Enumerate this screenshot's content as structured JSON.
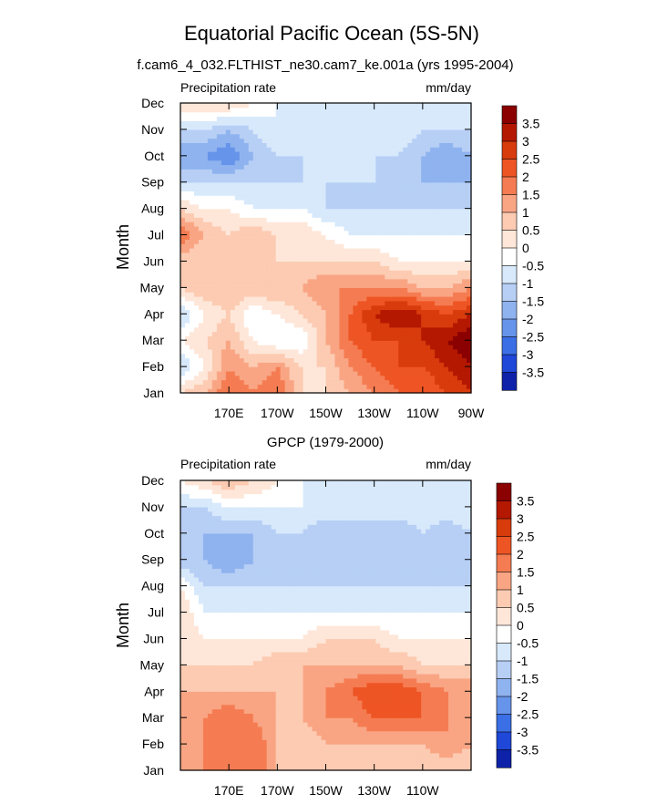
{
  "figure": {
    "title": "Equatorial Pacific Ocean (5S-5N)"
  },
  "chart_data": [
    {
      "type": "heatmap",
      "subtitle": "f.cam6_4_032.FLTHIST_ne30.cam7_ke.001a (yrs 1995-2004)",
      "left_label": "Precipitation rate",
      "right_label": "mm/day",
      "ylabel": "Month",
      "xlabel": "",
      "x_range_deg_east": [
        150,
        270
      ],
      "x_ticks": [
        {
          "value": 170,
          "label": "170E"
        },
        {
          "value": 190,
          "label": "170W"
        },
        {
          "value": 210,
          "label": "150W"
        },
        {
          "value": 230,
          "label": "130W"
        },
        {
          "value": 250,
          "label": "110W"
        },
        {
          "value": 270,
          "label": "90W"
        }
      ],
      "y_ticks": [
        "Jan",
        "Feb",
        "Mar",
        "Apr",
        "May",
        "Jun",
        "Jul",
        "Aug",
        "Sep",
        "Oct",
        "Nov",
        "Dec"
      ],
      "colorbar_levels": [
        "3.5",
        "3",
        "2.5",
        "2",
        "1.5",
        "1",
        "0.5",
        "0",
        "-0.5",
        "-1",
        "-1.5",
        "-2",
        "-2.5",
        "-3",
        "-3.5"
      ],
      "colorbar_colors": [
        "#8b0000",
        "#b41800",
        "#d83b0c",
        "#ee5524",
        "#f57c52",
        "#f9a584",
        "#fccbb2",
        "#fee7d9",
        "#ffffff",
        "#d7e9fb",
        "#b7cff5",
        "#8fb3ef",
        "#6694ea",
        "#3b6fe6",
        "#1f47d8",
        "#0d22a8"
      ],
      "grid_lon": [
        150,
        160,
        170,
        180,
        190,
        200,
        210,
        220,
        230,
        240,
        250,
        260,
        270
      ],
      "values": [
        [
          0.5,
          1.0,
          2.0,
          1.5,
          2.0,
          0.5,
          0.5,
          1.0,
          1.5,
          2.0,
          2.0,
          2.5,
          3.0
        ],
        [
          -1.0,
          0.0,
          1.5,
          1.0,
          1.5,
          0.5,
          0.5,
          1.5,
          2.0,
          2.5,
          2.5,
          3.0,
          3.5
        ],
        [
          0.0,
          0.5,
          1.0,
          0.0,
          -0.5,
          -0.5,
          1.0,
          2.0,
          2.5,
          2.5,
          3.0,
          3.5,
          4.0
        ],
        [
          -1.0,
          0.0,
          0.5,
          -0.5,
          0.0,
          0.5,
          1.0,
          2.0,
          3.0,
          3.5,
          3.0,
          2.5,
          3.0
        ],
        [
          0.5,
          1.0,
          1.0,
          1.0,
          1.0,
          1.0,
          1.5,
          1.5,
          1.5,
          1.5,
          1.0,
          1.0,
          1.5
        ],
        [
          0.5,
          0.5,
          0.5,
          0.5,
          0.5,
          0.5,
          0.5,
          0.5,
          0.5,
          0.0,
          0.0,
          0.0,
          0.0
        ],
        [
          2.0,
          1.0,
          0.5,
          1.0,
          0.5,
          0.5,
          0.0,
          -0.5,
          -0.5,
          -0.5,
          -0.5,
          -0.5,
          -0.5
        ],
        [
          0.5,
          0.0,
          0.0,
          -0.5,
          -0.5,
          -0.5,
          -1.0,
          -1.0,
          -1.0,
          -1.0,
          -1.0,
          -1.0,
          -1.0
        ],
        [
          -1.0,
          -1.0,
          -1.0,
          -1.0,
          -1.0,
          -1.0,
          -1.0,
          -1.0,
          -1.0,
          -1.0,
          -1.5,
          -1.5,
          -1.5
        ],
        [
          -2.0,
          -2.0,
          -2.5,
          -1.5,
          -1.0,
          -1.0,
          -0.5,
          -0.5,
          -1.0,
          -1.0,
          -1.5,
          -2.0,
          -1.5
        ],
        [
          -1.0,
          -1.0,
          -1.5,
          -1.0,
          -0.5,
          -0.5,
          -0.5,
          -0.5,
          -0.5,
          -0.5,
          -1.0,
          -1.0,
          -1.0
        ],
        [
          0.5,
          0.5,
          0.5,
          0.0,
          -0.5,
          -0.5,
          -0.5,
          -0.5,
          -0.5,
          -0.5,
          -0.5,
          -0.5,
          -0.5
        ]
      ]
    },
    {
      "type": "heatmap",
      "subtitle": "GPCP (1979-2000)",
      "left_label": "Precipitation rate",
      "right_label": "mm/day",
      "ylabel": "Month",
      "xlabel": "",
      "x_range_deg_east": [
        150,
        270
      ],
      "x_ticks": [
        {
          "value": 170,
          "label": "170E"
        },
        {
          "value": 190,
          "label": "170W"
        },
        {
          "value": 210,
          "label": "150W"
        },
        {
          "value": 230,
          "label": "130W"
        },
        {
          "value": 250,
          "label": "110W"
        }
      ],
      "y_ticks": [
        "Jan",
        "Feb",
        "Mar",
        "Apr",
        "May",
        "Jun",
        "Jul",
        "Aug",
        "Sep",
        "Oct",
        "Nov",
        "Dec"
      ],
      "colorbar_levels": [
        "3.5",
        "3",
        "2.5",
        "2",
        "1.5",
        "1",
        "0.5",
        "0",
        "-0.5",
        "-1",
        "-1.5",
        "-2",
        "-2.5",
        "-3",
        "-3.5"
      ],
      "colorbar_colors": [
        "#8b0000",
        "#b41800",
        "#d83b0c",
        "#ee5524",
        "#f57c52",
        "#f9a584",
        "#fccbb2",
        "#fee7d9",
        "#ffffff",
        "#d7e9fb",
        "#b7cff5",
        "#8fb3ef",
        "#6694ea",
        "#3b6fe6",
        "#1f47d8",
        "#0d22a8"
      ],
      "grid_lon": [
        150,
        160,
        170,
        180,
        190,
        200,
        210,
        220,
        230,
        240,
        250,
        260,
        270
      ],
      "values": [
        [
          1.0,
          1.5,
          1.5,
          2.0,
          1.0,
          0.5,
          0.5,
          0.5,
          0.5,
          0.5,
          0.5,
          0.5,
          0.5
        ],
        [
          1.0,
          1.5,
          2.0,
          2.0,
          1.0,
          0.5,
          1.0,
          1.0,
          1.0,
          1.0,
          1.0,
          1.5,
          1.0
        ],
        [
          1.0,
          1.5,
          2.0,
          1.5,
          1.0,
          1.0,
          1.5,
          1.5,
          2.0,
          2.0,
          2.0,
          1.5,
          1.5
        ],
        [
          1.0,
          1.0,
          1.0,
          1.0,
          1.0,
          1.0,
          1.5,
          2.0,
          2.5,
          2.5,
          2.0,
          1.5,
          1.5
        ],
        [
          0.5,
          0.5,
          0.5,
          0.5,
          1.0,
          1.0,
          1.0,
          1.0,
          1.0,
          1.0,
          0.5,
          0.5,
          0.5
        ],
        [
          0.5,
          0.0,
          0.0,
          0.0,
          0.0,
          0.0,
          0.5,
          0.5,
          0.5,
          0.0,
          0.0,
          0.0,
          0.0
        ],
        [
          0.5,
          -0.5,
          -0.5,
          -0.5,
          -0.5,
          -0.5,
          -0.5,
          -0.5,
          -0.5,
          -0.5,
          -0.5,
          -0.5,
          -0.5
        ],
        [
          0.0,
          -1.0,
          -1.0,
          -1.0,
          -1.0,
          -1.0,
          -1.0,
          -1.0,
          -1.0,
          -1.0,
          -1.0,
          -1.0,
          -1.0
        ],
        [
          -1.5,
          -1.5,
          -2.0,
          -1.5,
          -1.0,
          -1.0,
          -1.0,
          -1.0,
          -1.5,
          -1.0,
          -1.0,
          -1.5,
          -1.0
        ],
        [
          -1.0,
          -1.5,
          -1.5,
          -1.5,
          -1.0,
          -1.0,
          -1.5,
          -1.5,
          -1.5,
          -1.5,
          -1.0,
          -1.5,
          -1.0
        ],
        [
          -1.0,
          -1.0,
          -0.5,
          -0.5,
          -0.5,
          -0.5,
          -0.5,
          -0.5,
          -0.5,
          -0.5,
          -0.5,
          -0.5,
          -0.5
        ],
        [
          0.0,
          0.5,
          1.0,
          0.5,
          0.0,
          -0.5,
          -0.5,
          -0.5,
          -0.5,
          -0.5,
          -0.5,
          -0.5,
          -0.5
        ]
      ]
    }
  ]
}
